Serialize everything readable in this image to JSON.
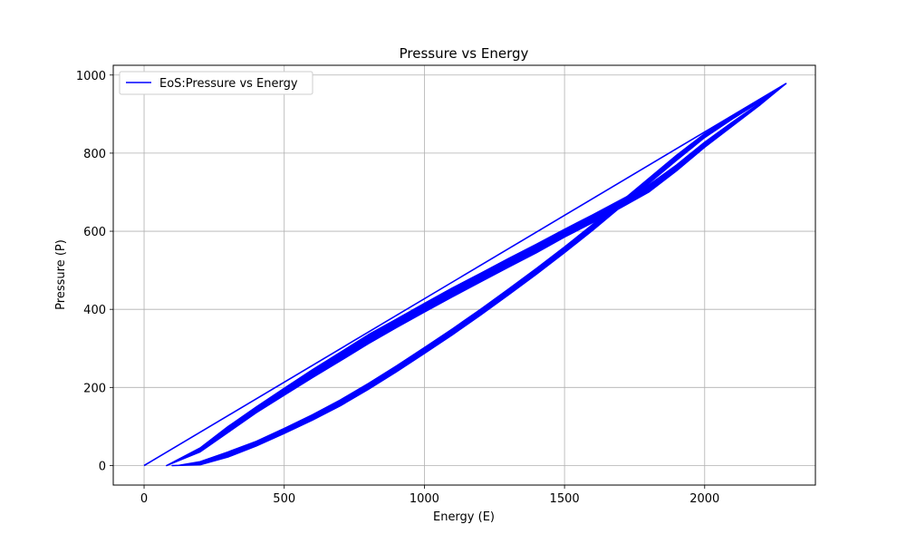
{
  "chart_data": {
    "type": "line",
    "title": "Pressure vs Energy",
    "xlabel": "Energy (E)",
    "ylabel": "Pressure (P)",
    "xlim": [
      -110,
      2395
    ],
    "ylim": [
      -50,
      1025
    ],
    "xticks": [
      0,
      500,
      1000,
      1500,
      2000
    ],
    "yticks": [
      0,
      200,
      400,
      600,
      800,
      1000
    ],
    "grid": true,
    "legend_position": "top-left",
    "line_color": "#0000ff",
    "series": [
      {
        "name": "EoS:Pressure vs Energy",
        "color": "#0000ff",
        "upper_branch": [
          [
            0,
            0
          ],
          [
            2290,
            978
          ]
        ],
        "mid_band_top": [
          [
            80,
            0
          ],
          [
            200,
            45
          ],
          [
            300,
            100
          ],
          [
            400,
            150
          ],
          [
            500,
            198
          ],
          [
            600,
            245
          ],
          [
            700,
            290
          ],
          [
            800,
            335
          ],
          [
            900,
            375
          ],
          [
            1000,
            415
          ],
          [
            1100,
            455
          ],
          [
            1200,
            492
          ],
          [
            1300,
            530
          ],
          [
            1400,
            567
          ],
          [
            1500,
            605
          ],
          [
            1600,
            642
          ],
          [
            1700,
            680
          ],
          [
            1800,
            718
          ],
          [
            1900,
            770
          ],
          [
            2000,
            828
          ],
          [
            2100,
            880
          ],
          [
            2200,
            930
          ],
          [
            2290,
            978
          ]
        ],
        "mid_band_bottom": [
          [
            80,
            0
          ],
          [
            200,
            35
          ],
          [
            300,
            85
          ],
          [
            400,
            135
          ],
          [
            500,
            180
          ],
          [
            600,
            225
          ],
          [
            700,
            268
          ],
          [
            800,
            312
          ],
          [
            900,
            353
          ],
          [
            1000,
            393
          ],
          [
            1100,
            432
          ],
          [
            1200,
            470
          ],
          [
            1300,
            508
          ],
          [
            1400,
            545
          ],
          [
            1500,
            585
          ],
          [
            1600,
            622
          ],
          [
            1700,
            660
          ],
          [
            1800,
            700
          ],
          [
            1900,
            755
          ],
          [
            2000,
            815
          ],
          [
            2100,
            870
          ],
          [
            2200,
            925
          ],
          [
            2290,
            978
          ]
        ],
        "low_band_top": [
          [
            120,
            0
          ],
          [
            200,
            10
          ],
          [
            300,
            35
          ],
          [
            400,
            62
          ],
          [
            500,
            95
          ],
          [
            600,
            130
          ],
          [
            700,
            168
          ],
          [
            800,
            210
          ],
          [
            900,
            255
          ],
          [
            1000,
            302
          ],
          [
            1100,
            350
          ],
          [
            1200,
            400
          ],
          [
            1300,
            452
          ],
          [
            1400,
            505
          ],
          [
            1500,
            560
          ],
          [
            1600,
            617
          ],
          [
            1700,
            675
          ],
          [
            1800,
            735
          ],
          [
            1900,
            795
          ],
          [
            2000,
            850
          ],
          [
            2100,
            895
          ],
          [
            2200,
            937
          ],
          [
            2290,
            978
          ]
        ],
        "low_band_bottom": [
          [
            100,
            0
          ],
          [
            200,
            2
          ],
          [
            300,
            22
          ],
          [
            400,
            50
          ],
          [
            500,
            82
          ],
          [
            600,
            116
          ],
          [
            700,
            153
          ],
          [
            800,
            195
          ],
          [
            900,
            240
          ],
          [
            1000,
            287
          ],
          [
            1100,
            335
          ],
          [
            1200,
            385
          ],
          [
            1300,
            437
          ],
          [
            1400,
            490
          ],
          [
            1500,
            545
          ],
          [
            1600,
            602
          ],
          [
            1700,
            662
          ],
          [
            1800,
            722
          ],
          [
            1900,
            782
          ],
          [
            2000,
            840
          ],
          [
            2100,
            888
          ],
          [
            2200,
            933
          ],
          [
            2290,
            978
          ]
        ]
      }
    ]
  }
}
